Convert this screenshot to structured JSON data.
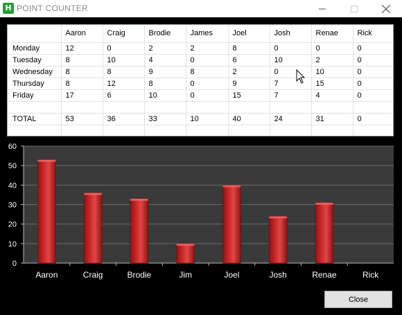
{
  "window": {
    "title": "POINT COUNTER",
    "icon_letter": "H"
  },
  "table": {
    "columns": [
      "Aaron",
      "Craig",
      "Brodie",
      "James",
      "Joel",
      "Josh",
      "Renae",
      "Rick"
    ],
    "rows": [
      {
        "label": "Monday",
        "values": [
          "12",
          "0",
          "2",
          "2",
          "8",
          "0",
          "0",
          "0"
        ]
      },
      {
        "label": "Tuesday",
        "values": [
          "8",
          "10",
          "4",
          "0",
          "6",
          "10",
          "2",
          "0"
        ]
      },
      {
        "label": "Wednesday",
        "values": [
          "8",
          "8",
          "9",
          "8",
          "2",
          "0",
          "10",
          "0"
        ]
      },
      {
        "label": "Thursday",
        "values": [
          "8",
          "12",
          "8",
          "0",
          "9",
          "7",
          "15",
          "0"
        ]
      },
      {
        "label": "Friday",
        "values": [
          "17",
          "6",
          "10",
          "0",
          "15",
          "7",
          "4",
          "0"
        ]
      },
      {
        "label": "",
        "values": [
          "",
          "",
          "",
          "",
          "",
          "",
          "",
          ""
        ]
      },
      {
        "label": "TOTAL",
        "values": [
          "53",
          "36",
          "33",
          "10",
          "40",
          "24",
          "31",
          "0"
        ]
      },
      {
        "label": "",
        "values": [
          "",
          "",
          "",
          "",
          "",
          "",
          "",
          ""
        ]
      }
    ]
  },
  "chart_data": {
    "type": "bar",
    "categories": [
      "Aaron",
      "Craig",
      "Brodie",
      "Jim",
      "Joel",
      "Josh",
      "Renae",
      "Rick"
    ],
    "values": [
      53,
      36,
      33,
      10,
      40,
      24,
      31,
      0
    ],
    "ylim": [
      0,
      60
    ],
    "yticks": [
      0,
      10,
      20,
      30,
      40,
      50,
      60
    ],
    "grid": true,
    "bar_color": "#cc2a2a",
    "plot_bg": "#3a3a3a",
    "label_color": "#ffffff"
  },
  "buttons": {
    "close_label": "Close"
  }
}
